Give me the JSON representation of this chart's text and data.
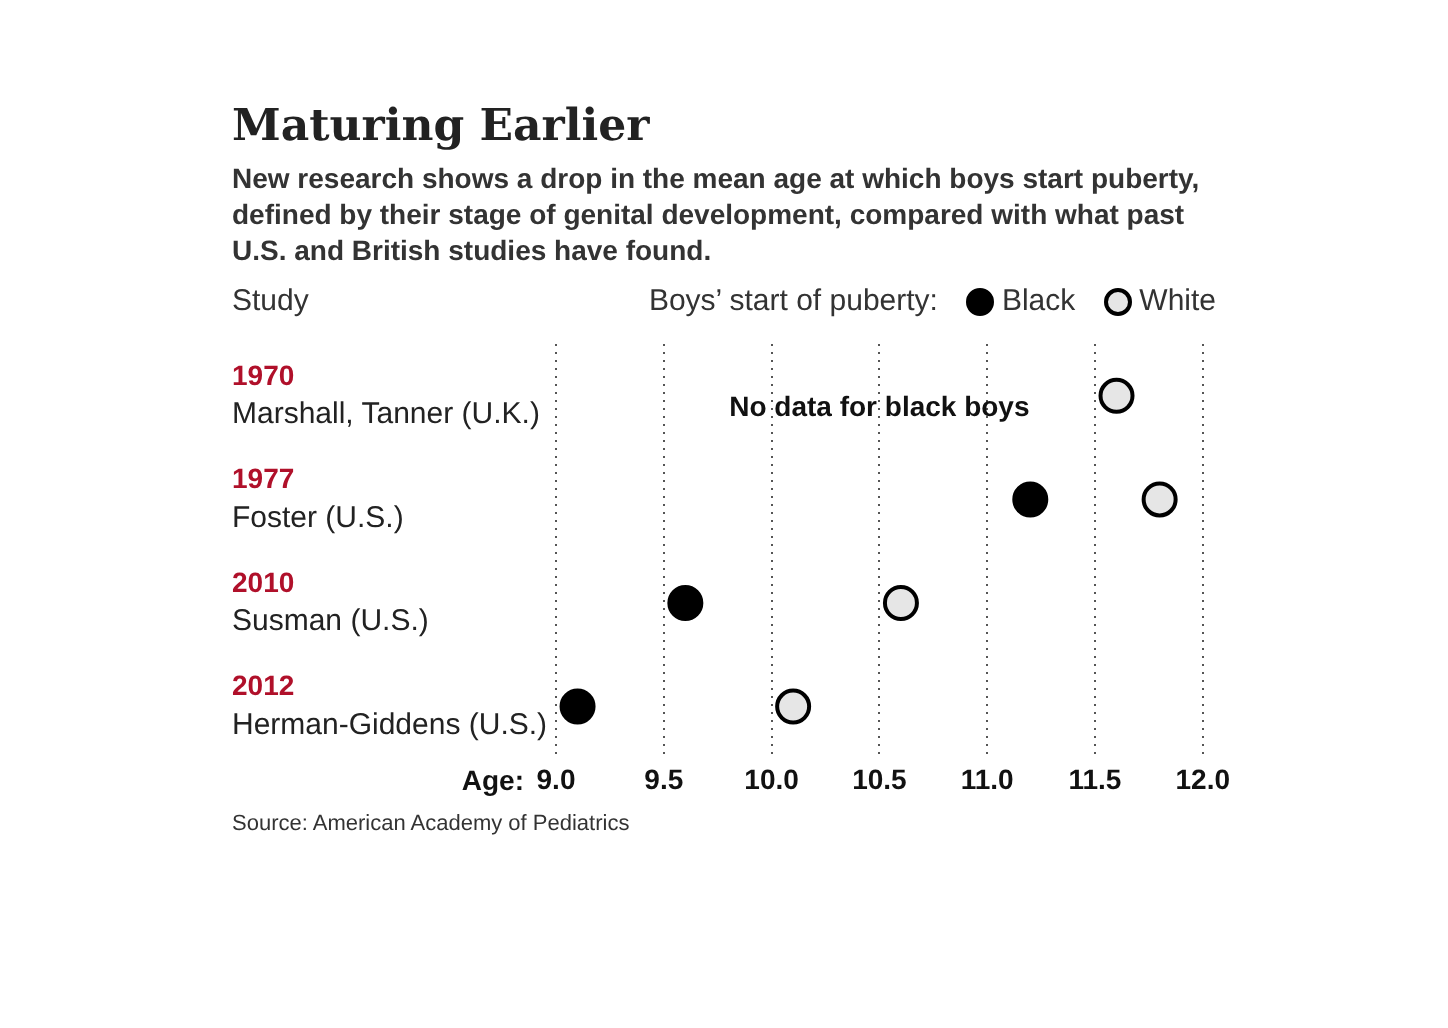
{
  "chart_data": {
    "type": "scatter",
    "title": "Maturing Earlier",
    "subtitle": "New research shows a drop in the mean age at which boys start puberty, defined by their stage of genital development, compared with what past U.S. and British studies have found.",
    "ylabel": "Study",
    "xlabel": "Age:",
    "legend_title": "Boys’ start of puberty:",
    "legend": "top right",
    "grid": "x",
    "orientation": "horizontal",
    "marker": "circle",
    "categories": [
      "1970\nMarshall, Tanner (U.K.)",
      "1977\nFoster (U.S.)",
      "2010\nSusman (U.S.)",
      "2012\nHerman-Giddens (U.S.)"
    ],
    "series": [
      {
        "name": "Black",
        "color": "#000000",
        "values": [
          null,
          11.2,
          9.6,
          9.1
        ]
      },
      {
        "name": "White",
        "color": "#e6e6e6",
        "values": [
          11.6,
          11.8,
          10.6,
          10.1
        ]
      }
    ],
    "xlim": [
      9,
      12
    ],
    "xticks": [
      {
        "value": 9,
        "label": "9.0"
      },
      {
        "value": 9.5,
        "label": "9.5"
      },
      {
        "value": 10,
        "label": "10.0"
      },
      {
        "value": 10.5,
        "label": "10.5"
      },
      {
        "value": 11,
        "label": "11.0"
      },
      {
        "value": 11.5,
        "label": "11.5"
      },
      {
        "value": 12,
        "label": "12.0"
      }
    ],
    "annotations": [
      "No data for black boys",
      "Source: American Academy of Pediatrics"
    ]
  }
}
